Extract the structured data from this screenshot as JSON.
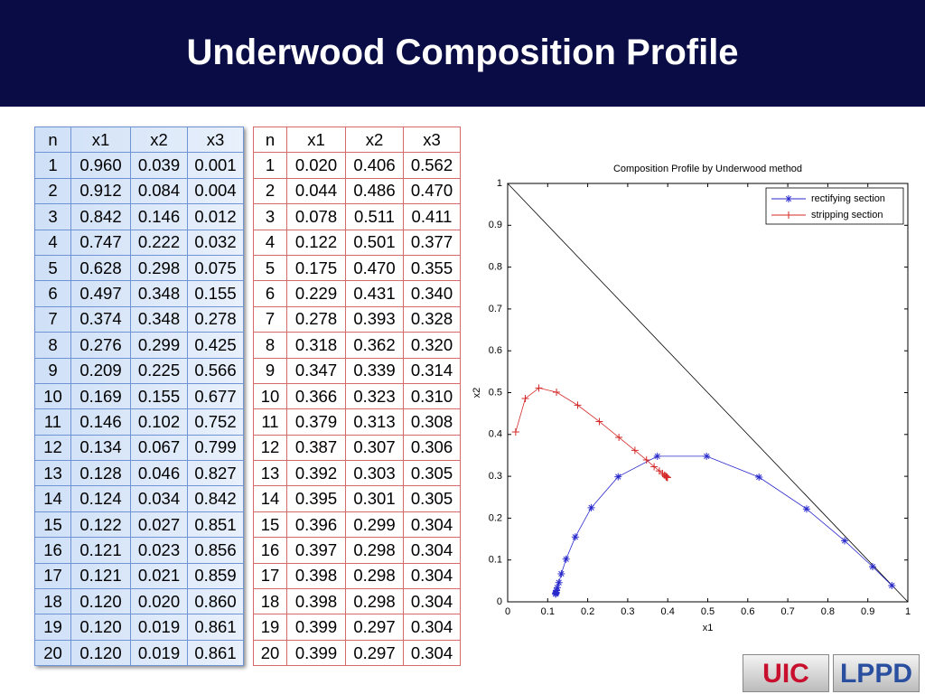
{
  "title": "Underwood Composition Profile",
  "tables": [
    {
      "header": [
        "n",
        "x1",
        "x2",
        "x3"
      ],
      "rows": [
        [
          "1",
          "0.960",
          "0.039",
          "0.001"
        ],
        [
          "2",
          "0.912",
          "0.084",
          "0.004"
        ],
        [
          "3",
          "0.842",
          "0.146",
          "0.012"
        ],
        [
          "4",
          "0.747",
          "0.222",
          "0.032"
        ],
        [
          "5",
          "0.628",
          "0.298",
          "0.075"
        ],
        [
          "6",
          "0.497",
          "0.348",
          "0.155"
        ],
        [
          "7",
          "0.374",
          "0.348",
          "0.278"
        ],
        [
          "8",
          "0.276",
          "0.299",
          "0.425"
        ],
        [
          "9",
          "0.209",
          "0.225",
          "0.566"
        ],
        [
          "10",
          "0.169",
          "0.155",
          "0.677"
        ],
        [
          "11",
          "0.146",
          "0.102",
          "0.752"
        ],
        [
          "12",
          "0.134",
          "0.067",
          "0.799"
        ],
        [
          "13",
          "0.128",
          "0.046",
          "0.827"
        ],
        [
          "14",
          "0.124",
          "0.034",
          "0.842"
        ],
        [
          "15",
          "0.122",
          "0.027",
          "0.851"
        ],
        [
          "16",
          "0.121",
          "0.023",
          "0.856"
        ],
        [
          "17",
          "0.121",
          "0.021",
          "0.859"
        ],
        [
          "18",
          "0.120",
          "0.020",
          "0.860"
        ],
        [
          "19",
          "0.120",
          "0.019",
          "0.861"
        ],
        [
          "20",
          "0.120",
          "0.019",
          "0.861"
        ]
      ]
    },
    {
      "header": [
        "n",
        "x1",
        "x2",
        "x3"
      ],
      "rows": [
        [
          "1",
          "0.020",
          "0.406",
          "0.562"
        ],
        [
          "2",
          "0.044",
          "0.486",
          "0.470"
        ],
        [
          "3",
          "0.078",
          "0.511",
          "0.411"
        ],
        [
          "4",
          "0.122",
          "0.501",
          "0.377"
        ],
        [
          "5",
          "0.175",
          "0.470",
          "0.355"
        ],
        [
          "6",
          "0.229",
          "0.431",
          "0.340"
        ],
        [
          "7",
          "0.278",
          "0.393",
          "0.328"
        ],
        [
          "8",
          "0.318",
          "0.362",
          "0.320"
        ],
        [
          "9",
          "0.347",
          "0.339",
          "0.314"
        ],
        [
          "10",
          "0.366",
          "0.323",
          "0.310"
        ],
        [
          "11",
          "0.379",
          "0.313",
          "0.308"
        ],
        [
          "12",
          "0.387",
          "0.307",
          "0.306"
        ],
        [
          "13",
          "0.392",
          "0.303",
          "0.305"
        ],
        [
          "14",
          "0.395",
          "0.301",
          "0.305"
        ],
        [
          "15",
          "0.396",
          "0.299",
          "0.304"
        ],
        [
          "16",
          "0.397",
          "0.298",
          "0.304"
        ],
        [
          "17",
          "0.398",
          "0.298",
          "0.304"
        ],
        [
          "18",
          "0.398",
          "0.298",
          "0.304"
        ],
        [
          "19",
          "0.399",
          "0.297",
          "0.304"
        ],
        [
          "20",
          "0.399",
          "0.297",
          "0.304"
        ]
      ]
    }
  ],
  "chart_data": {
    "type": "line",
    "title": "Composition Profile by Underwood method",
    "x_label": "x1",
    "y_label": "x2",
    "xlim": [
      0,
      1
    ],
    "ylim": [
      0,
      1
    ],
    "xticks": [
      0,
      0.1,
      0.2,
      0.3,
      0.4,
      0.5,
      0.6,
      0.7,
      0.8,
      0.9,
      1
    ],
    "yticks": [
      0,
      0.1,
      0.2,
      0.3,
      0.4,
      0.5,
      0.6,
      0.7,
      0.8,
      0.9,
      1
    ],
    "legend": "upper right",
    "series": [
      {
        "name": "rectifying section",
        "color": "#2a2acc",
        "marker": "*",
        "x": [
          0.96,
          0.912,
          0.842,
          0.747,
          0.628,
          0.497,
          0.374,
          0.276,
          0.209,
          0.169,
          0.146,
          0.134,
          0.128,
          0.124,
          0.122,
          0.121,
          0.121,
          0.12,
          0.12,
          0.12
        ],
        "values": [
          0.039,
          0.084,
          0.146,
          0.222,
          0.298,
          0.348,
          0.348,
          0.299,
          0.225,
          0.155,
          0.102,
          0.067,
          0.046,
          0.034,
          0.027,
          0.023,
          0.021,
          0.02,
          0.019,
          0.019
        ]
      },
      {
        "name": "stripping section",
        "color": "#d42a2a",
        "marker": "+",
        "x": [
          0.02,
          0.044,
          0.078,
          0.122,
          0.175,
          0.229,
          0.278,
          0.318,
          0.347,
          0.366,
          0.379,
          0.387,
          0.392,
          0.395,
          0.396,
          0.397,
          0.398,
          0.398,
          0.399,
          0.399
        ],
        "values": [
          0.406,
          0.486,
          0.511,
          0.501,
          0.47,
          0.431,
          0.393,
          0.362,
          0.339,
          0.323,
          0.313,
          0.307,
          0.303,
          0.301,
          0.299,
          0.298,
          0.298,
          0.298,
          0.297,
          0.297
        ]
      }
    ]
  },
  "logos": [
    "UIC",
    "LPPD"
  ]
}
